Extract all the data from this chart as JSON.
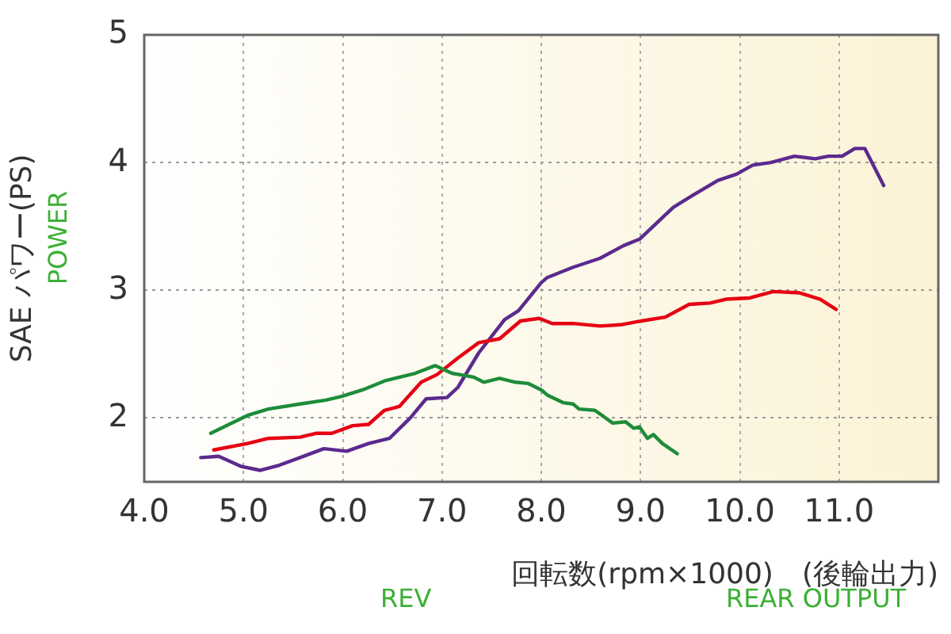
{
  "chart_data": {
    "type": "line",
    "xlabel": "回転数(rpm×1000)　(後輪出力)",
    "ylabel": "SAE パワー(PS)",
    "annotations": [
      "POWER",
      "REV",
      "REAR OUTPUT"
    ],
    "xlim": [
      4,
      12
    ],
    "xticks": [
      {
        "value": 4,
        "label": "4.0"
      },
      {
        "value": 5,
        "label": "5.0"
      },
      {
        "value": 6,
        "label": "6.0"
      },
      {
        "value": 7,
        "label": "7.0"
      },
      {
        "value": 8,
        "label": "8.0"
      },
      {
        "value": 9,
        "label": "9.0"
      },
      {
        "value": 10,
        "label": "10.0"
      },
      {
        "value": 11,
        "label": "11.0"
      },
      {
        "value": 12,
        "label": null
      }
    ],
    "ylim": [
      1.5,
      5
    ],
    "yticks": [
      {
        "value": 1.5,
        "label": null
      },
      2,
      3,
      4,
      5
    ],
    "grid": true,
    "legend": false,
    "marker": "none",
    "line_style": "solid",
    "series": [
      {
        "color": "#1e8c3a",
        "x": [
          4.67,
          4.83,
          5.04,
          5.25,
          5.57,
          5.83,
          5.99,
          6.2,
          6.42,
          6.73,
          6.93,
          7.1,
          7.32,
          7.42,
          7.58,
          7.74,
          7.87,
          8.0,
          8.06,
          8.22,
          8.32,
          8.38,
          8.54,
          8.72,
          8.85,
          8.93,
          8.99,
          9.07,
          9.13,
          9.22,
          9.37
        ],
        "values": [
          1.88,
          1.94,
          2.02,
          2.07,
          2.11,
          2.14,
          2.17,
          2.22,
          2.29,
          2.35,
          2.41,
          2.35,
          2.32,
          2.28,
          2.31,
          2.28,
          2.27,
          2.22,
          2.18,
          2.12,
          2.11,
          2.07,
          2.06,
          1.96,
          1.97,
          1.92,
          1.93,
          1.84,
          1.87,
          1.8,
          1.72
        ]
      },
      {
        "color": "#e60012",
        "x": [
          4.7,
          5.04,
          5.25,
          5.57,
          5.73,
          5.89,
          6.1,
          6.26,
          6.42,
          6.57,
          6.79,
          6.95,
          7.16,
          7.37,
          7.58,
          7.79,
          7.98,
          8.11,
          8.32,
          8.59,
          8.8,
          9.01,
          9.25,
          9.49,
          9.7,
          9.86,
          10.1,
          10.34,
          10.6,
          10.81,
          10.97
        ],
        "values": [
          1.75,
          1.8,
          1.84,
          1.85,
          1.88,
          1.88,
          1.94,
          1.95,
          2.06,
          2.09,
          2.28,
          2.34,
          2.47,
          2.59,
          2.62,
          2.76,
          2.78,
          2.74,
          2.74,
          2.72,
          2.73,
          2.76,
          2.79,
          2.89,
          2.9,
          2.93,
          2.94,
          2.99,
          2.98,
          2.93,
          2.85
        ]
      },
      {
        "color": "#5b2a8e",
        "x": [
          4.57,
          4.75,
          4.98,
          5.17,
          5.36,
          5.57,
          5.81,
          6.04,
          6.26,
          6.47,
          6.68,
          6.84,
          7.05,
          7.16,
          7.37,
          7.63,
          7.77,
          8.0,
          8.06,
          8.32,
          8.59,
          8.83,
          8.99,
          9.33,
          9.54,
          9.78,
          9.97,
          10.13,
          10.31,
          10.55,
          10.76,
          10.89,
          11.03,
          11.16,
          11.26,
          11.45
        ],
        "values": [
          1.69,
          1.7,
          1.62,
          1.59,
          1.63,
          1.69,
          1.76,
          1.74,
          1.8,
          1.84,
          2.0,
          2.15,
          2.16,
          2.24,
          2.51,
          2.77,
          2.84,
          3.06,
          3.1,
          3.18,
          3.25,
          3.35,
          3.4,
          3.65,
          3.75,
          3.86,
          3.91,
          3.98,
          4.0,
          4.05,
          4.03,
          4.05,
          4.05,
          4.11,
          4.11,
          3.82
        ]
      }
    ]
  }
}
